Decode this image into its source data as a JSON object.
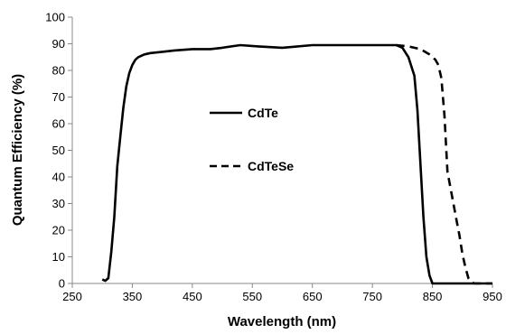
{
  "chart_data": {
    "type": "line",
    "xlabel": "Wavelength (nm)",
    "ylabel": "Quantum Efficiency (%)",
    "xlim": [
      250,
      950
    ],
    "ylim": [
      0,
      100
    ],
    "xticks": [
      250,
      350,
      450,
      550,
      650,
      750,
      850,
      950
    ],
    "yticks": [
      0,
      10,
      20,
      30,
      40,
      50,
      60,
      70,
      80,
      90,
      100
    ],
    "grid": false,
    "legend_position": "center",
    "series": [
      {
        "name": "CdTe",
        "style": "solid",
        "color": "#000000",
        "x": [
          300,
          305,
          310,
          315,
          320,
          325,
          330,
          335,
          340,
          345,
          350,
          355,
          360,
          370,
          380,
          400,
          420,
          450,
          480,
          500,
          530,
          560,
          600,
          650,
          700,
          750,
          790,
          800,
          810,
          820,
          825,
          830,
          835,
          840,
          845,
          850,
          860,
          900,
          950
        ],
        "y": [
          1.5,
          1,
          2,
          12,
          25,
          44,
          55,
          66,
          74,
          79,
          82,
          84,
          85,
          86,
          86.5,
          87,
          87.5,
          88,
          88,
          88.5,
          89.5,
          89,
          88.5,
          89.5,
          89.5,
          89.5,
          89.5,
          88.5,
          85,
          78,
          65,
          45,
          25,
          10,
          3,
          0,
          0,
          0,
          0
        ]
      },
      {
        "name": "CdTeSe",
        "style": "dashed",
        "color": "#000000",
        "x": [
          790,
          810,
          830,
          845,
          855,
          860,
          865,
          870,
          875,
          880,
          885,
          890,
          895,
          900,
          905,
          910,
          915,
          920,
          925,
          950
        ],
        "y": [
          89.5,
          89,
          88,
          86,
          84,
          82,
          77,
          63,
          42,
          36,
          30,
          24,
          18,
          11,
          6,
          2,
          0.5,
          0,
          0,
          0
        ]
      }
    ]
  }
}
